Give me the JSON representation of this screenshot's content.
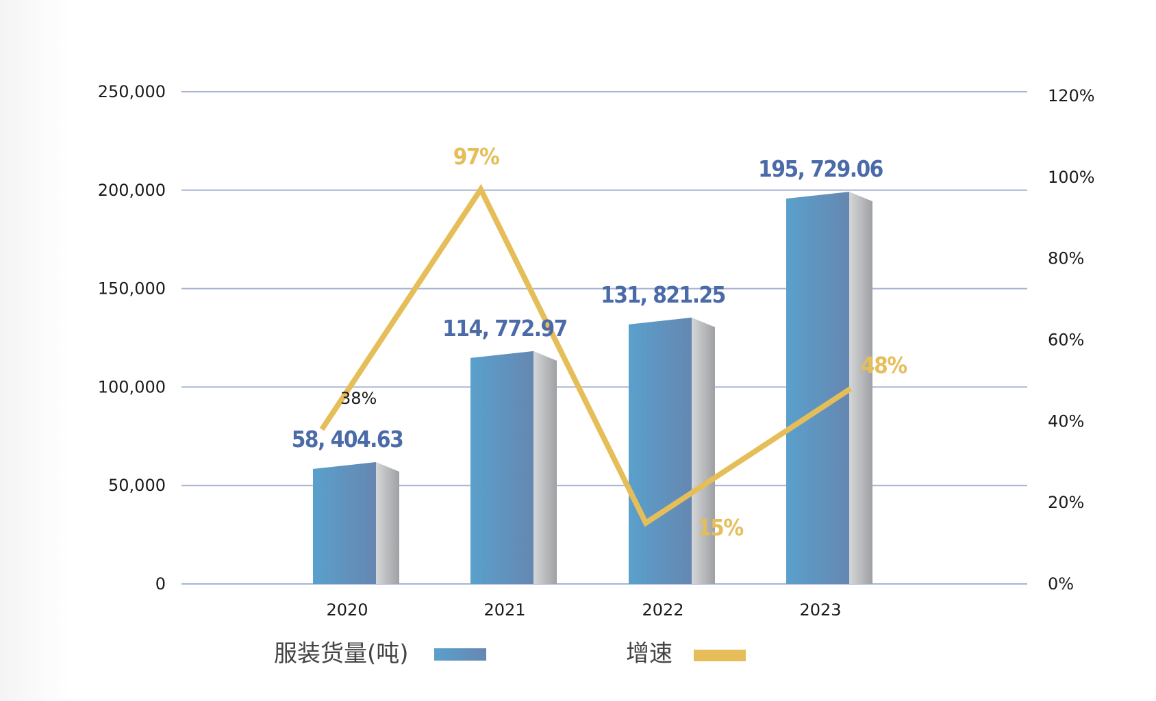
{
  "chart_data": {
    "type": "bar",
    "categories": [
      "2020",
      "2021",
      "2022",
      "2023"
    ],
    "series": [
      {
        "name": "服装货量(吨)",
        "type": "bar",
        "axis": "left",
        "values": [
          58404.63,
          114772.97,
          131821.25,
          195729.06
        ],
        "labels": [
          "58, 404.63",
          "114, 772.97",
          "131, 821.25",
          "195, 729.06"
        ]
      },
      {
        "name": "增速",
        "type": "line",
        "axis": "right",
        "values": [
          38,
          97,
          15,
          48
        ],
        "labels": [
          "38%",
          "97%",
          "15%",
          "48%"
        ]
      }
    ],
    "y_left": {
      "ticks": [
        "250,000",
        "200,000",
        "150,000",
        "100,000",
        "50,000",
        "0"
      ],
      "ylim": [
        0,
        250000
      ]
    },
    "y_right": {
      "ticks": [
        "120%",
        "100%",
        "80%",
        "60%",
        "40%",
        "20%",
        "0%"
      ],
      "ylim": [
        0,
        120
      ]
    },
    "grid": true,
    "legend_position": "bottom",
    "colors": {
      "bar_front_start": "#5aa0cc",
      "bar_front_end": "#6588b2",
      "bar_side": "#a9abad",
      "bar_label": "#4a6aa8",
      "line": "#e5be5a",
      "rate_label_first": "#1a1a1a",
      "grid": "#a7b3d4"
    }
  }
}
